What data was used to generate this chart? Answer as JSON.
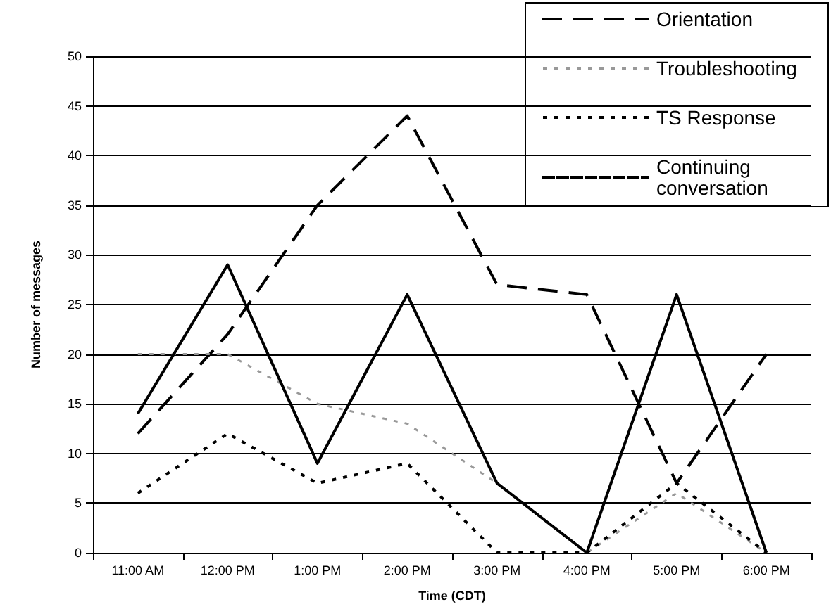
{
  "chart_data": {
    "type": "line",
    "xlabel": "Time (CDT)",
    "ylabel": "Number of messages",
    "categories": [
      "11:00 AM",
      "12:00 PM",
      "1:00 PM",
      "2:00 PM",
      "3:00 PM",
      "4:00 PM",
      "5:00 PM",
      "6:00 PM"
    ],
    "series": [
      {
        "name": "Orientation",
        "color": "#000000",
        "line_style": "dashed",
        "values": [
          12,
          22,
          35,
          44,
          27,
          26,
          7,
          20
        ]
      },
      {
        "name": "Troubleshooting",
        "color": "#999999",
        "line_style": "dotted",
        "values": [
          20,
          20,
          15,
          13,
          7,
          0,
          6,
          0
        ]
      },
      {
        "name": "TS Response",
        "color": "#000000",
        "line_style": "dotted",
        "values": [
          6,
          12,
          7,
          9,
          0,
          0,
          7,
          0
        ]
      },
      {
        "name": "Continuing conversation",
        "color": "#000000",
        "line_style": "solid",
        "values": [
          14,
          29,
          9,
          26,
          7,
          0,
          26,
          0
        ]
      }
    ],
    "ylim": [
      0,
      50
    ],
    "yticks": [
      0,
      5,
      10,
      15,
      20,
      25,
      30,
      35,
      40,
      45,
      50
    ],
    "grid": "y",
    "legend": "top right",
    "marker": "none"
  }
}
